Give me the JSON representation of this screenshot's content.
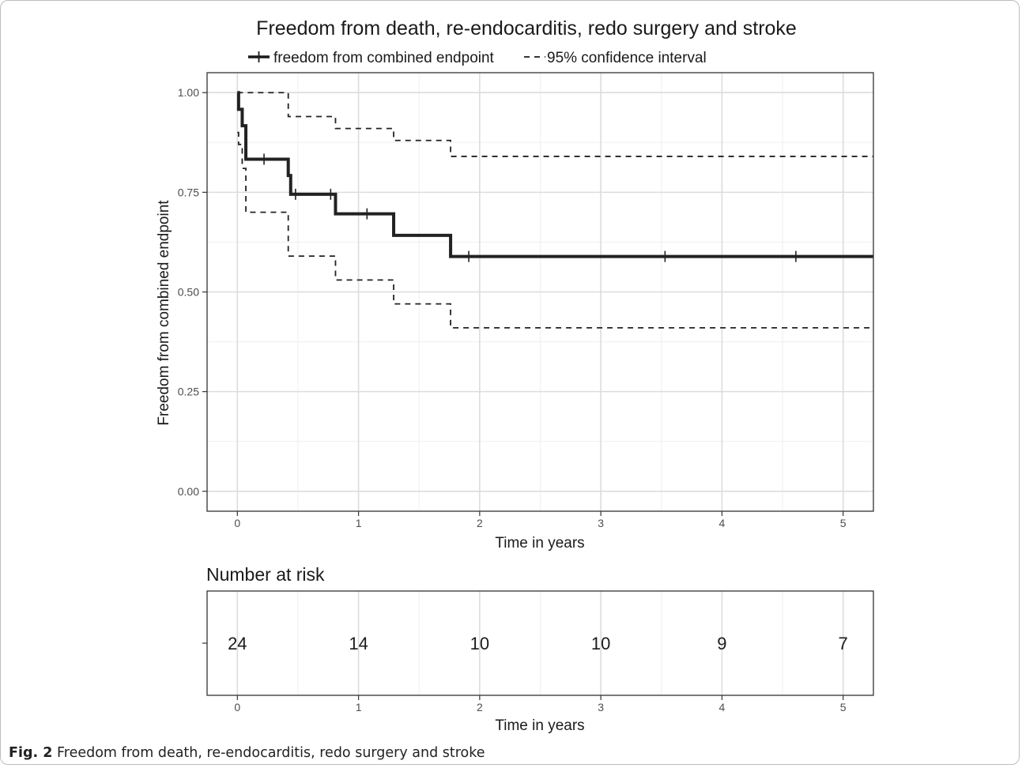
{
  "figure": {
    "caption_label": "Fig. 2",
    "caption_text": "Freedom from death, re-endocarditis, redo surgery and stroke"
  },
  "chart_data": [
    {
      "type": "line",
      "subtype": "kaplan-meier",
      "title": "Freedom from death, re-endocarditis, redo surgery and stroke",
      "xlabel": "Time in years",
      "ylabel": "Freedom from combined endpoint",
      "xlim": [
        -0.25,
        5.25
      ],
      "ylim": [
        -0.05,
        1.05
      ],
      "x_ticks": [
        0,
        1,
        2,
        3,
        4,
        5
      ],
      "x_tick_labels": [
        "0",
        "1",
        "2",
        "3",
        "4",
        "5"
      ],
      "y_ticks": [
        0,
        0.25,
        0.5,
        0.75,
        1.0
      ],
      "y_tick_labels": [
        "0.00",
        "0.25",
        "0.50",
        "0.75",
        "1.00"
      ],
      "grid": true,
      "legend_position": "top",
      "legend": [
        {
          "label": "freedom from combined endpoint",
          "style": "solid"
        },
        {
          "label": "95% confidence interval",
          "style": "dashed"
        }
      ],
      "series": [
        {
          "name": "freedom from combined endpoint",
          "style": "solid",
          "color": "#222222",
          "x": [
            0,
            0.01,
            0.04,
            0.07,
            0.42,
            0.44,
            0.81,
            1.29,
            1.76,
            5.25
          ],
          "y": [
            1.0,
            0.958,
            0.917,
            0.833,
            0.792,
            0.745,
            0.696,
            0.642,
            0.589,
            0.589
          ],
          "censor_x": [
            0.22,
            0.48,
            0.77,
            1.07,
            1.91,
            3.53,
            4.61
          ],
          "censor_y": [
            0.833,
            0.745,
            0.745,
            0.696,
            0.589,
            0.589,
            0.589
          ]
        },
        {
          "name": "95% confidence interval",
          "style": "dashed",
          "color": "#222222",
          "x": [
            0,
            0.01,
            0.04,
            0.07,
            0.42,
            0.81,
            1.29,
            1.76,
            5.25
          ],
          "y": [
            0.9,
            0.87,
            0.81,
            0.7,
            0.59,
            0.53,
            0.47,
            0.41,
            0.41
          ]
        },
        {
          "name": "95% confidence interval",
          "style": "dashed",
          "color": "#222222",
          "x": [
            0,
            0.42,
            0.81,
            1.29,
            1.76,
            5.25
          ],
          "y": [
            1.0,
            0.94,
            0.91,
            0.88,
            0.84,
            0.84
          ]
        }
      ]
    },
    {
      "type": "table",
      "title": "Number at risk",
      "xlabel": "Time in years",
      "x_ticks": [
        0,
        1,
        2,
        3,
        4,
        5
      ],
      "x_tick_labels": [
        "0",
        "1",
        "2",
        "3",
        "4",
        "5"
      ],
      "values": [
        24,
        14,
        10,
        10,
        9,
        7
      ]
    }
  ]
}
